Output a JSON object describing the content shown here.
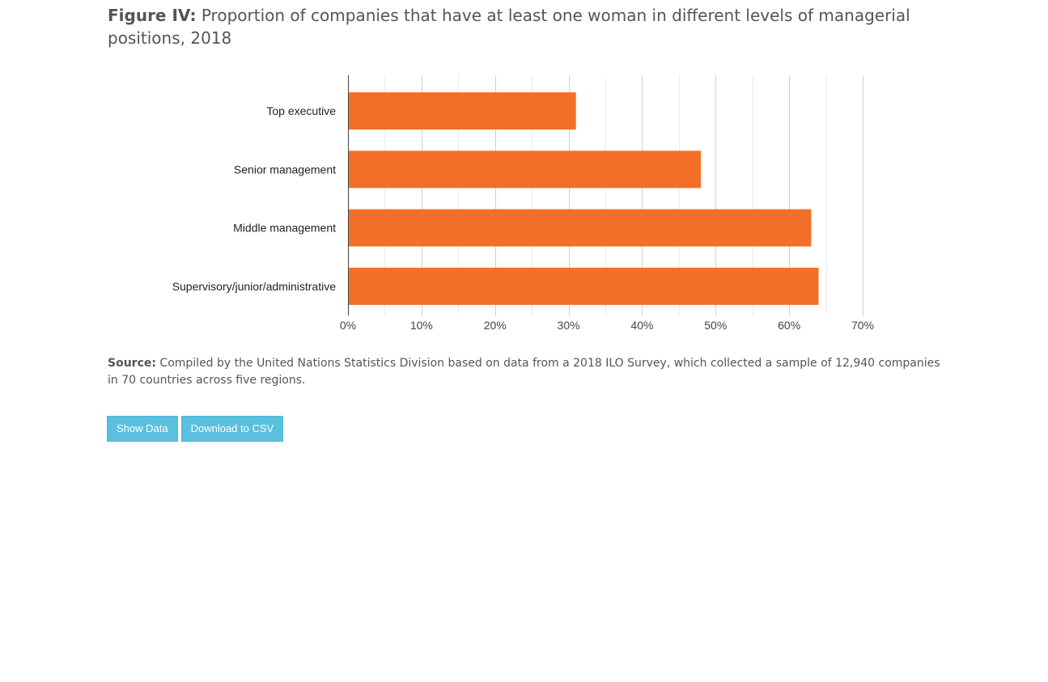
{
  "figure": {
    "title_label": "Figure IV:",
    "title_text": "Proportion of companies that have at least one woman in different levels of managerial positions, 2018"
  },
  "source": {
    "label": "Source:",
    "text": "Compiled by the United Nations Statistics Division based on data from a 2018 ILO Survey, which collected a sample of 12,940 companies in 70 countries across five regions."
  },
  "buttons": {
    "show_data": "Show Data",
    "download_csv": "Download to CSV"
  },
  "colors": {
    "bar": "#f36f28",
    "grid_major": "#d0d0d0",
    "grid_minor": "#ebebeb",
    "axis": "#444444",
    "button": "#5bc0de"
  },
  "chart_data": {
    "type": "bar",
    "orientation": "horizontal",
    "categories": [
      "Top executive",
      "Senior management",
      "Middle management",
      "Supervisory/junior/administrative"
    ],
    "values": [
      31,
      48,
      63,
      64
    ],
    "unit": "%",
    "xlim": [
      0,
      70
    ],
    "xticks": [
      "0%",
      "10%",
      "20%",
      "30%",
      "40%",
      "50%",
      "60%",
      "70%"
    ],
    "grid": true,
    "legend": "none"
  }
}
